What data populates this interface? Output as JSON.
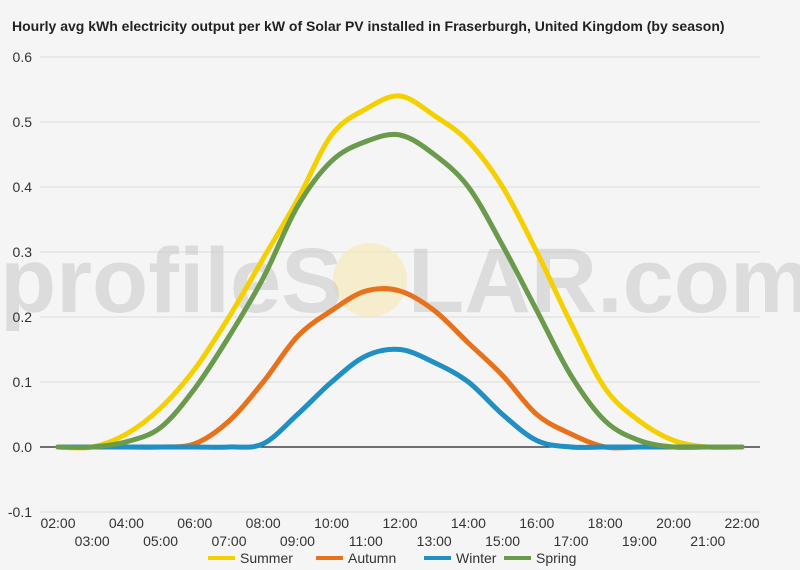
{
  "chart_data": {
    "type": "line",
    "title": "Hourly avg kWh electricity output per kW of Solar PV installed in Fraserburgh, United Kingdom (by season)",
    "xlabel": "",
    "ylabel": "",
    "x": [
      "02:00",
      "03:00",
      "04:00",
      "05:00",
      "06:00",
      "07:00",
      "08:00",
      "09:00",
      "10:00",
      "11:00",
      "12:00",
      "13:00",
      "14:00",
      "15:00",
      "16:00",
      "17:00",
      "18:00",
      "19:00",
      "20:00",
      "21:00",
      "22:00"
    ],
    "ylim": [
      -0.1,
      0.6
    ],
    "yticks": [
      "0.6",
      "0.5",
      "0.4",
      "0.3",
      "0.2",
      "0.1",
      "0.0",
      "-0.1"
    ],
    "grid": true,
    "legend_position": "bottom",
    "series": [
      {
        "name": "Summer",
        "color": "#f5d000",
        "values": [
          0.0,
          0.0,
          0.02,
          0.06,
          0.12,
          0.2,
          0.29,
          0.38,
          0.48,
          0.52,
          0.54,
          0.51,
          0.47,
          0.4,
          0.3,
          0.19,
          0.09,
          0.04,
          0.01,
          0.0,
          0.0
        ]
      },
      {
        "name": "Autumn",
        "color": "#e8711c",
        "values": [
          0.0,
          0.0,
          0.0,
          0.0,
          0.005,
          0.04,
          0.1,
          0.17,
          0.21,
          0.24,
          0.24,
          0.21,
          0.16,
          0.11,
          0.05,
          0.02,
          0.0,
          0.0,
          0.0,
          0.0,
          0.0
        ]
      },
      {
        "name": "Winter",
        "color": "#1f8fc4",
        "values": [
          0.0,
          0.0,
          0.0,
          0.0,
          0.0,
          0.0,
          0.005,
          0.05,
          0.1,
          0.14,
          0.15,
          0.13,
          0.1,
          0.05,
          0.01,
          0.0,
          0.0,
          0.0,
          0.0,
          0.0,
          0.0
        ]
      },
      {
        "name": "Spring",
        "color": "#6a9a4c",
        "values": [
          0.0,
          0.0,
          0.008,
          0.03,
          0.09,
          0.17,
          0.26,
          0.37,
          0.44,
          0.47,
          0.48,
          0.45,
          0.4,
          0.31,
          0.21,
          0.11,
          0.04,
          0.01,
          0.0,
          0.0,
          0.0
        ]
      }
    ]
  },
  "watermark": {
    "left": "profileS",
    "right": "LAR.com"
  }
}
